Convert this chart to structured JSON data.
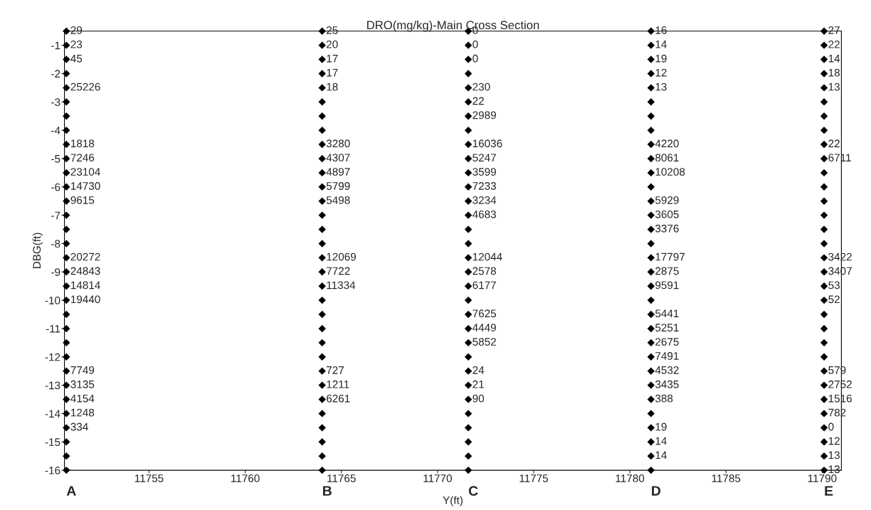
{
  "chart_data": {
    "type": "scatter",
    "title": "DRO(mg/kg)-Main Cross Section",
    "xlabel": "Y(ft)",
    "ylabel": "DBG(ft)",
    "xlim": [
      11750.6,
      11791
    ],
    "xticks": [
      11755,
      11760,
      11765,
      11770,
      11775,
      11780,
      11785,
      11790
    ],
    "ylim": [
      -16,
      -0.5
    ],
    "yticks": [
      -1,
      -2,
      -3,
      -4,
      -5,
      -6,
      -7,
      -8,
      -9,
      -10,
      -11,
      -12,
      -13,
      -14,
      -15,
      -16
    ],
    "marker": "diamond",
    "grid": false,
    "annotations": [
      "A",
      "B",
      "C",
      "D",
      "E",
      {
        "text": "29",
        "x": 11750.7,
        "y": -0.5
      },
      {
        "text": "23",
        "x": 11750.7,
        "y": -1
      },
      {
        "text": "45",
        "x": 11750.7,
        "y": -1.5
      },
      {
        "text": "25226",
        "x": 11750.7,
        "y": -2.5
      },
      {
        "text": "1818",
        "x": 11750.7,
        "y": -4.5
      },
      {
        "text": "7246",
        "x": 11750.7,
        "y": -5
      },
      {
        "text": "23104",
        "x": 11750.7,
        "y": -5.5
      },
      {
        "text": "14730",
        "x": 11750.7,
        "y": -6
      },
      {
        "text": "9615",
        "x": 11750.7,
        "y": -6.5
      },
      {
        "text": "20272",
        "x": 11750.7,
        "y": -8.5
      },
      {
        "text": "24843",
        "x": 11750.7,
        "y": -9
      },
      {
        "text": "14814",
        "x": 11750.7,
        "y": -9.5
      },
      {
        "text": "19440",
        "x": 11750.7,
        "y": -10
      },
      {
        "text": "7749",
        "x": 11750.7,
        "y": -12.5
      },
      {
        "text": "3135",
        "x": 11750.7,
        "y": -13
      },
      {
        "text": "4154",
        "x": 11750.7,
        "y": -13.5
      },
      {
        "text": "1248",
        "x": 11750.7,
        "y": -14
      },
      {
        "text": "334",
        "x": 11750.7,
        "y": -14.5
      },
      {
        "text": "25",
        "x": 11764.0,
        "y": -0.5
      },
      {
        "text": "20",
        "x": 11764.0,
        "y": -1
      },
      {
        "text": "17",
        "x": 11764.0,
        "y": -1.5
      },
      {
        "text": "17",
        "x": 11764.0,
        "y": -2
      },
      {
        "text": "18",
        "x": 11764.0,
        "y": -2.5
      },
      {
        "text": "3280",
        "x": 11764.0,
        "y": -4.5
      },
      {
        "text": "4307",
        "x": 11764.0,
        "y": -5
      },
      {
        "text": "4897",
        "x": 11764.0,
        "y": -5.5
      },
      {
        "text": "5799",
        "x": 11764.0,
        "y": -6
      },
      {
        "text": "5498",
        "x": 11764.0,
        "y": -6.5
      },
      {
        "text": "12069",
        "x": 11764.0,
        "y": -8.5
      },
      {
        "text": "7722",
        "x": 11764.0,
        "y": -9
      },
      {
        "text": "11334",
        "x": 11764.0,
        "y": -9.5
      },
      {
        "text": "727",
        "x": 11764.0,
        "y": -12.5
      },
      {
        "text": "1211",
        "x": 11764.0,
        "y": -13
      },
      {
        "text": "6261",
        "x": 11764.0,
        "y": -13.5
      },
      {
        "text": "0",
        "x": 11771.6,
        "y": -0.5
      },
      {
        "text": "0",
        "x": 11771.6,
        "y": -1
      },
      {
        "text": "0",
        "x": 11771.6,
        "y": -1.5
      },
      {
        "text": "230",
        "x": 11771.6,
        "y": -2.5
      },
      {
        "text": "22",
        "x": 11771.6,
        "y": -3
      },
      {
        "text": "2989",
        "x": 11771.6,
        "y": -3.5
      },
      {
        "text": "16036",
        "x": 11771.6,
        "y": -4.5
      },
      {
        "text": "5247",
        "x": 11771.6,
        "y": -5
      },
      {
        "text": "3599",
        "x": 11771.6,
        "y": -5.5
      },
      {
        "text": "7233",
        "x": 11771.6,
        "y": -6
      },
      {
        "text": "3234",
        "x": 11771.6,
        "y": -6.5
      },
      {
        "text": "4683",
        "x": 11771.6,
        "y": -7
      },
      {
        "text": "12044",
        "x": 11771.6,
        "y": -8.5
      },
      {
        "text": "2578",
        "x": 11771.6,
        "y": -9
      },
      {
        "text": "6177",
        "x": 11771.6,
        "y": -9.5
      },
      {
        "text": "7625",
        "x": 11771.6,
        "y": -10.5
      },
      {
        "text": "4449",
        "x": 11771.6,
        "y": -11
      },
      {
        "text": "5852",
        "x": 11771.6,
        "y": -11.5
      },
      {
        "text": "24",
        "x": 11771.6,
        "y": -12.5
      },
      {
        "text": "21",
        "x": 11771.6,
        "y": -13
      },
      {
        "text": "90",
        "x": 11771.6,
        "y": -13.5
      },
      {
        "text": "16",
        "x": 11781.1,
        "y": -0.5
      },
      {
        "text": "14",
        "x": 11781.1,
        "y": -1
      },
      {
        "text": "19",
        "x": 11781.1,
        "y": -1.5
      },
      {
        "text": "12",
        "x": 11781.1,
        "y": -2
      },
      {
        "text": "13",
        "x": 11781.1,
        "y": -2.5
      },
      {
        "text": "4220",
        "x": 11781.1,
        "y": -4.5
      },
      {
        "text": "8061",
        "x": 11781.1,
        "y": -5
      },
      {
        "text": "10208",
        "x": 11781.1,
        "y": -5.5
      },
      {
        "text": "5929",
        "x": 11781.1,
        "y": -6.5
      },
      {
        "text": "3605",
        "x": 11781.1,
        "y": -7
      },
      {
        "text": "3376",
        "x": 11781.1,
        "y": -7.5
      },
      {
        "text": "17797",
        "x": 11781.1,
        "y": -8.5
      },
      {
        "text": "2875",
        "x": 11781.1,
        "y": -9
      },
      {
        "text": "9591",
        "x": 11781.1,
        "y": -9.5
      },
      {
        "text": "5441",
        "x": 11781.1,
        "y": -10.5
      },
      {
        "text": "5251",
        "x": 11781.1,
        "y": -11
      },
      {
        "text": "2675",
        "x": 11781.1,
        "y": -11.5
      },
      {
        "text": "7491",
        "x": 11781.1,
        "y": -12
      },
      {
        "text": "4532",
        "x": 11781.1,
        "y": -12.5
      },
      {
        "text": "3435",
        "x": 11781.1,
        "y": -13
      },
      {
        "text": "388",
        "x": 11781.1,
        "y": -13.5
      },
      {
        "text": "19",
        "x": 11781.1,
        "y": -14.5
      },
      {
        "text": "14",
        "x": 11781.1,
        "y": -15
      },
      {
        "text": "14",
        "x": 11781.1,
        "y": -15.5
      },
      {
        "text": "27",
        "x": 11790.1,
        "y": -0.5
      },
      {
        "text": "22",
        "x": 11790.1,
        "y": -1
      },
      {
        "text": "14",
        "x": 11790.1,
        "y": -1.5
      },
      {
        "text": "18",
        "x": 11790.1,
        "y": -2
      },
      {
        "text": "13",
        "x": 11790.1,
        "y": -2.5
      },
      {
        "text": "22",
        "x": 11790.1,
        "y": -4.5
      },
      {
        "text": "6711",
        "x": 11790.1,
        "y": -5
      },
      {
        "text": "3422",
        "x": 11790.1,
        "y": -8.5
      },
      {
        "text": "3407",
        "x": 11790.1,
        "y": -9
      },
      {
        "text": "53",
        "x": 11790.1,
        "y": -9.5
      },
      {
        "text": "52",
        "x": 11790.1,
        "y": -10
      },
      {
        "text": "579",
        "x": 11790.1,
        "y": -12.5
      },
      {
        "text": "2752",
        "x": 11790.1,
        "y": -13
      },
      {
        "text": "1516",
        "x": 11790.1,
        "y": -13.5
      },
      {
        "text": "782",
        "x": 11790.1,
        "y": -14
      },
      {
        "text": "0",
        "x": 11790.1,
        "y": -14.5
      },
      {
        "text": "12",
        "x": 11790.1,
        "y": -15
      },
      {
        "text": "13",
        "x": 11790.1,
        "y": -15.5
      },
      {
        "text": "13",
        "x": 11790.1,
        "y": -16
      }
    ],
    "series": [
      {
        "color": "#000000",
        "x": [
          11750.7,
          11750.7,
          11750.7,
          11750.7,
          11750.7,
          11750.7,
          11750.7,
          11750.7,
          11750.7,
          11750.7,
          11750.7,
          11750.7,
          11750.7,
          11750.7,
          11750.7,
          11750.7,
          11750.7,
          11750.7,
          11750.7,
          11750.7,
          11750.7,
          11750.7,
          11750.7,
          11750.7,
          11750.7,
          11750.7,
          11750.7,
          11750.7,
          11750.7,
          11750.7,
          11750.7,
          11750.7
        ],
        "values": [
          -0.5,
          -1,
          -1.5,
          -2,
          -2.5,
          -3,
          -3.5,
          -4,
          -4.5,
          -5,
          -5.5,
          -6,
          -6.5,
          -7,
          -7.5,
          -8,
          -8.5,
          -9,
          -9.5,
          -10,
          -10.5,
          -11,
          -11.5,
          -12,
          -12.5,
          -13,
          -13.5,
          -14,
          -14.5,
          -15,
          -15.5,
          -16
        ]
      },
      {
        "color": "#000000",
        "x": [
          11764.0,
          11764.0,
          11764.0,
          11764.0,
          11764.0,
          11764.0,
          11764.0,
          11764.0,
          11764.0,
          11764.0,
          11764.0,
          11764.0,
          11764.0,
          11764.0,
          11764.0,
          11764.0,
          11764.0,
          11764.0,
          11764.0,
          11764.0,
          11764.0,
          11764.0,
          11764.0,
          11764.0,
          11764.0,
          11764.0,
          11764.0,
          11764.0,
          11764.0,
          11764.0,
          11764.0,
          11764.0
        ],
        "values": [
          -0.5,
          -1,
          -1.5,
          -2,
          -2.5,
          -3,
          -3.5,
          -4,
          -4.5,
          -5,
          -5.5,
          -6,
          -6.5,
          -7,
          -7.5,
          -8,
          -8.5,
          -9,
          -9.5,
          -10,
          -10.5,
          -11,
          -11.5,
          -12,
          -12.5,
          -13,
          -13.5,
          -14,
          -14.5,
          -15,
          -15.5,
          -16
        ]
      },
      {
        "color": "#000000",
        "x": [
          11771.6,
          11771.6,
          11771.6,
          11771.6,
          11771.6,
          11771.6,
          11771.6,
          11771.6,
          11771.6,
          11771.6,
          11771.6,
          11771.6,
          11771.6,
          11771.6,
          11771.6,
          11771.6,
          11771.6,
          11771.6,
          11771.6,
          11771.6,
          11771.6,
          11771.6,
          11771.6,
          11771.6,
          11771.6,
          11771.6,
          11771.6,
          11771.6,
          11771.6,
          11771.6,
          11771.6,
          11771.6
        ],
        "values": [
          -0.5,
          -1,
          -1.5,
          -2,
          -2.5,
          -3,
          -3.5,
          -4,
          -4.5,
          -5,
          -5.5,
          -6,
          -6.5,
          -7,
          -7.5,
          -8,
          -8.5,
          -9,
          -9.5,
          -10,
          -10.5,
          -11,
          -11.5,
          -12,
          -12.5,
          -13,
          -13.5,
          -14,
          -14.5,
          -15,
          -15.5,
          -16
        ]
      },
      {
        "color": "#000000",
        "x": [
          11781.1,
          11781.1,
          11781.1,
          11781.1,
          11781.1,
          11781.1,
          11781.1,
          11781.1,
          11781.1,
          11781.1,
          11781.1,
          11781.1,
          11781.1,
          11781.1,
          11781.1,
          11781.1,
          11781.1,
          11781.1,
          11781.1,
          11781.1,
          11781.1,
          11781.1,
          11781.1,
          11781.1,
          11781.1,
          11781.1,
          11781.1,
          11781.1,
          11781.1,
          11781.1,
          11781.1,
          11781.1
        ],
        "values": [
          -0.5,
          -1,
          -1.5,
          -2,
          -2.5,
          -3,
          -3.5,
          -4,
          -4.5,
          -5,
          -5.5,
          -6,
          -6.5,
          -7,
          -7.5,
          -8,
          -8.5,
          -9,
          -9.5,
          -10,
          -10.5,
          -11,
          -11.5,
          -12,
          -12.5,
          -13,
          -13.5,
          -14,
          -14.5,
          -15,
          -15.5,
          -16
        ]
      },
      {
        "color": "#000000",
        "x": [
          11790.1,
          11790.1,
          11790.1,
          11790.1,
          11790.1,
          11790.1,
          11790.1,
          11790.1,
          11790.1,
          11790.1,
          11790.1,
          11790.1,
          11790.1,
          11790.1,
          11790.1,
          11790.1,
          11790.1,
          11790.1,
          11790.1,
          11790.1,
          11790.1,
          11790.1,
          11790.1,
          11790.1,
          11790.1,
          11790.1,
          11790.1,
          11790.1,
          11790.1,
          11790.1,
          11790.1,
          11790.1
        ],
        "values": [
          -0.5,
          -1,
          -1.5,
          -2,
          -2.5,
          -3,
          -3.5,
          -4,
          -4.5,
          -5,
          -5.5,
          -6,
          -6.5,
          -7,
          -7.5,
          -8,
          -8.5,
          -9,
          -9.5,
          -10,
          -10.5,
          -11,
          -11.5,
          -12,
          -12.5,
          -13,
          -13.5,
          -14,
          -14.5,
          -15,
          -15.5,
          -16
        ]
      }
    ]
  }
}
